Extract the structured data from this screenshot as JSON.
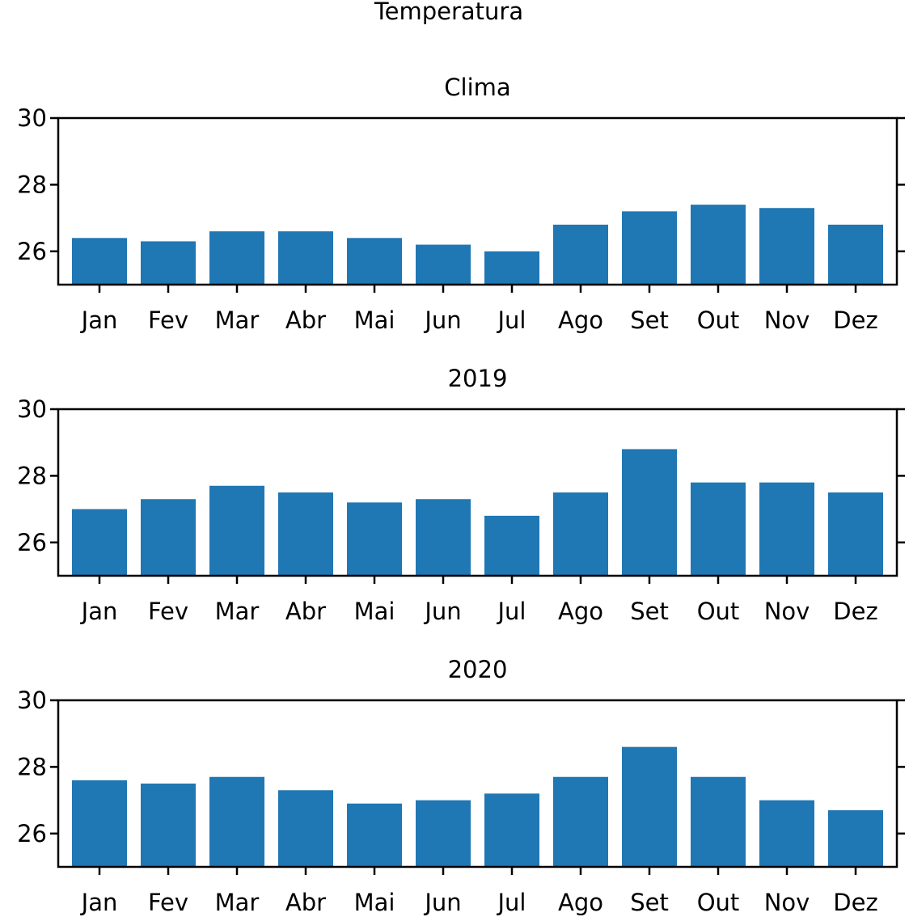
{
  "chart_data": {
    "title": "Temperatura",
    "type": "bar",
    "subplots": [
      {
        "title": "Clima",
        "categories": [
          "Jan",
          "Fev",
          "Mar",
          "Abr",
          "Mai",
          "Jun",
          "Jul",
          "Ago",
          "Set",
          "Out",
          "Nov",
          "Dez"
        ],
        "values": [
          26.4,
          26.3,
          26.6,
          26.6,
          26.4,
          26.2,
          26.0,
          26.8,
          27.2,
          27.4,
          27.3,
          26.8
        ],
        "ylim": [
          25,
          30
        ],
        "yticks": [
          26,
          28,
          30
        ],
        "color": "#1f77b4"
      },
      {
        "title": "2019",
        "categories": [
          "Jan",
          "Fev",
          "Mar",
          "Abr",
          "Mai",
          "Jun",
          "Jul",
          "Ago",
          "Set",
          "Out",
          "Nov",
          "Dez"
        ],
        "values": [
          27.0,
          27.3,
          27.7,
          27.5,
          27.2,
          27.3,
          26.8,
          27.5,
          28.8,
          27.8,
          27.8,
          27.5
        ],
        "ylim": [
          25,
          30
        ],
        "yticks": [
          26,
          28,
          30
        ],
        "color": "#1f77b4"
      },
      {
        "title": "2020",
        "categories": [
          "Jan",
          "Fev",
          "Mar",
          "Abr",
          "Mai",
          "Jun",
          "Jul",
          "Ago",
          "Set",
          "Out",
          "Nov",
          "Dez"
        ],
        "values": [
          27.6,
          27.5,
          27.7,
          27.3,
          26.9,
          27.0,
          27.2,
          27.7,
          28.6,
          27.7,
          27.0,
          26.7
        ],
        "ylim": [
          25,
          30
        ],
        "yticks": [
          26,
          28,
          30
        ],
        "color": "#1f77b4"
      }
    ]
  }
}
